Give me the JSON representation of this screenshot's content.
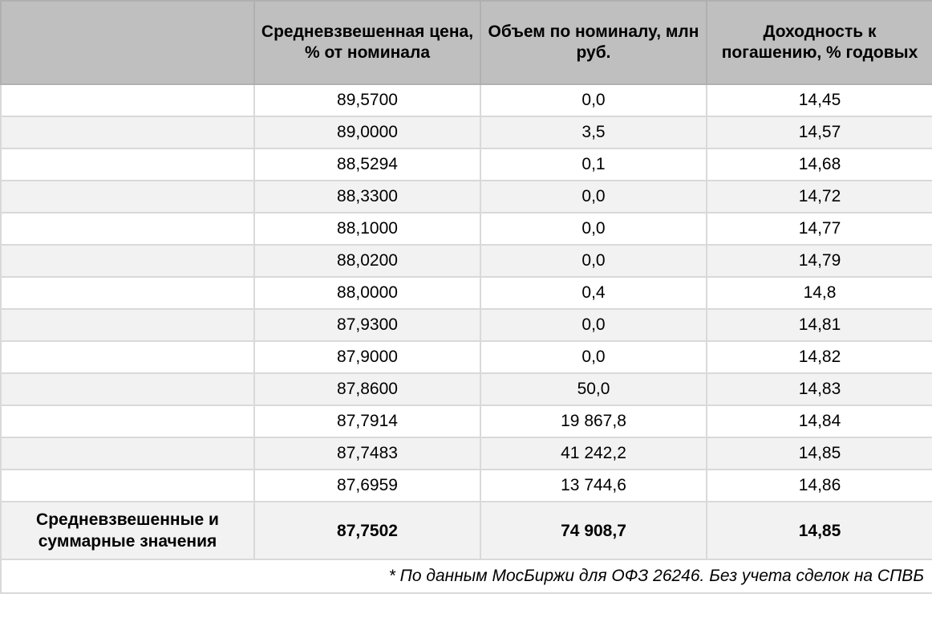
{
  "headers": [
    "",
    "Средневзвешенная цена, % от номинала",
    "Объем по номиналу, млн руб.",
    "Доходность к погашению, % годовых"
  ],
  "rows": [
    [
      "",
      "89,5700",
      "0,0",
      "14,45"
    ],
    [
      "",
      "89,0000",
      "3,5",
      "14,57"
    ],
    [
      "",
      "88,5294",
      "0,1",
      "14,68"
    ],
    [
      "",
      "88,3300",
      "0,0",
      "14,72"
    ],
    [
      "",
      "88,1000",
      "0,0",
      "14,77"
    ],
    [
      "",
      "88,0200",
      "0,0",
      "14,79"
    ],
    [
      "",
      "88,0000",
      "0,4",
      "14,8"
    ],
    [
      "",
      "87,9300",
      "0,0",
      "14,81"
    ],
    [
      "",
      "87,9000",
      "0,0",
      "14,82"
    ],
    [
      "",
      "87,8600",
      "50,0",
      "14,83"
    ],
    [
      "",
      "87,7914",
      "19 867,8",
      "14,84"
    ],
    [
      "",
      "87,7483",
      "41 242,2",
      "14,85"
    ],
    [
      "",
      "87,6959",
      "13 744,6",
      "14,86"
    ]
  ],
  "total": [
    "Средневзвешенные и суммарные значения",
    "87,7502",
    "74 908,7",
    "14,85"
  ],
  "note": "* По данным МосБиржи для ОФЗ 26246. Без учета сделок на СПВБ",
  "colors": {
    "header_bg": "#bfbfbf",
    "alt_row_bg": "#f2f2f2",
    "border": "#d9d9d9"
  }
}
